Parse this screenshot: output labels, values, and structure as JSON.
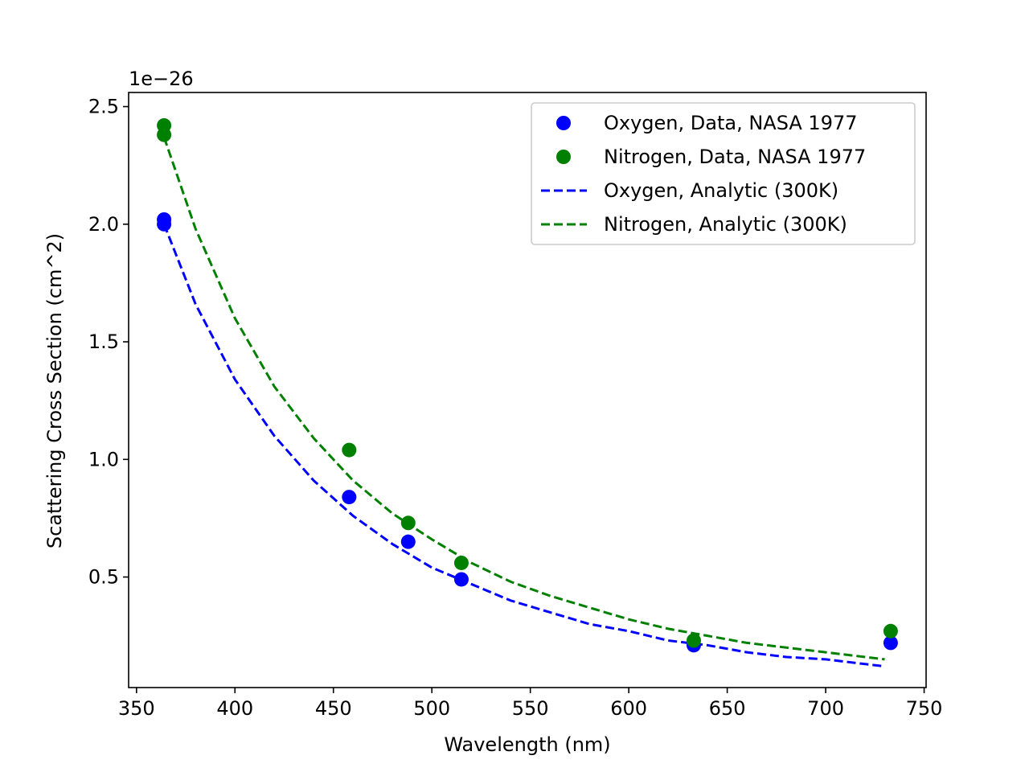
{
  "chart_data": {
    "type": "scatter",
    "xlabel": "Wavelength (nm)",
    "ylabel": "Scattering Cross Section (cm^2)",
    "y_offset_text": "1e−26",
    "xlim": [
      346,
      751
    ],
    "ylim": [
      0.03,
      2.56
    ],
    "x_ticks": [
      350,
      400,
      450,
      500,
      550,
      600,
      650,
      700,
      750
    ],
    "y_ticks": [
      0.5,
      1.0,
      1.5,
      2.0,
      2.5
    ],
    "x_tick_labels": [
      "350",
      "400",
      "450",
      "500",
      "550",
      "600",
      "650",
      "700",
      "750"
    ],
    "y_tick_labels": [
      "0.5",
      "1.0",
      "1.5",
      "2.0",
      "2.5"
    ],
    "grid": false,
    "legend_position": "top-right",
    "series": [
      {
        "name": "Oxygen, Data, NASA 1977",
        "kind": "points",
        "color": "#0000ff",
        "x": [
          364,
          364,
          458,
          488,
          515,
          633,
          733
        ],
        "y": [
          2.02,
          2.0,
          0.84,
          0.65,
          0.49,
          0.21,
          0.22
        ]
      },
      {
        "name": "Nitrogen, Data, NASA 1977",
        "kind": "points",
        "color": "#008000",
        "x": [
          364,
          364,
          458,
          488,
          515,
          633,
          733
        ],
        "y": [
          2.42,
          2.38,
          1.04,
          0.73,
          0.56,
          0.23,
          0.27
        ]
      },
      {
        "name": "Oxygen, Analytic (300K)",
        "kind": "dashed-line",
        "color": "#0000ff",
        "x": [
          364,
          380,
          400,
          420,
          440,
          460,
          480,
          500,
          520,
          540,
          560,
          580,
          600,
          620,
          640,
          660,
          680,
          700,
          720,
          730
        ],
        "y": [
          2.0,
          1.66,
          1.34,
          1.1,
          0.91,
          0.76,
          0.64,
          0.54,
          0.47,
          0.4,
          0.35,
          0.3,
          0.27,
          0.23,
          0.21,
          0.18,
          0.16,
          0.15,
          0.13,
          0.12
        ]
      },
      {
        "name": "Nitrogen, Analytic (300K)",
        "kind": "dashed-line",
        "color": "#008000",
        "x": [
          364,
          380,
          400,
          420,
          440,
          460,
          480,
          500,
          520,
          540,
          560,
          580,
          600,
          620,
          640,
          660,
          680,
          700,
          720,
          730
        ],
        "y": [
          2.37,
          1.98,
          1.6,
          1.31,
          1.09,
          0.91,
          0.77,
          0.66,
          0.56,
          0.48,
          0.42,
          0.37,
          0.32,
          0.28,
          0.25,
          0.22,
          0.2,
          0.18,
          0.16,
          0.15
        ]
      }
    ]
  }
}
